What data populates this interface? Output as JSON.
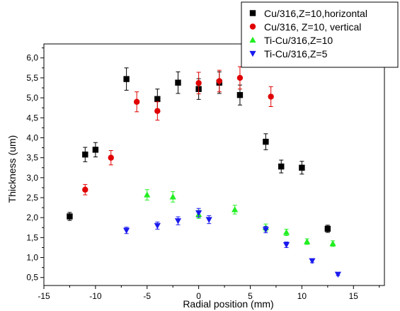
{
  "chart_data": {
    "type": "scatter",
    "title": "",
    "xlabel": "Radial position  (mm)",
    "ylabel": "Thickness (um)",
    "xlim": [
      -15,
      18
    ],
    "ylim": [
      0.3,
      6.35
    ],
    "xticks": [
      -15,
      -10,
      -5,
      0,
      5,
      10,
      15
    ],
    "xtick_labels": [
      "-15",
      "-10",
      "-5",
      "0",
      "5",
      "10",
      "15"
    ],
    "yticks": [
      0.5,
      1.0,
      1.5,
      2.0,
      2.5,
      3.0,
      3.5,
      4.0,
      4.5,
      5.0,
      5.5,
      6.0
    ],
    "ytick_labels": [
      "0,5",
      "1,0",
      "1,5",
      "2,0",
      "2,5",
      "3,0",
      "3,5",
      "4,0",
      "4,5",
      "5,0",
      "5,5",
      "6,0"
    ],
    "grid": false,
    "legend_position": "top-right",
    "series": [
      {
        "name": "Cu/316,Z=10,horizontal",
        "marker": "square",
        "color": "#000000",
        "points": [
          {
            "x": -12.5,
            "y": 2.03,
            "err": 0.1
          },
          {
            "x": -11,
            "y": 3.58,
            "err": 0.18
          },
          {
            "x": -10,
            "y": 3.7,
            "err": 0.18
          },
          {
            "x": -7,
            "y": 5.47,
            "err": 0.28
          },
          {
            "x": -4,
            "y": 4.97,
            "err": 0.25
          },
          {
            "x": -2,
            "y": 5.38,
            "err": 0.27
          },
          {
            "x": 0,
            "y": 5.22,
            "err": 0.26
          },
          {
            "x": 2,
            "y": 5.38,
            "err": 0.27
          },
          {
            "x": 4,
            "y": 5.07,
            "err": 0.25
          },
          {
            "x": 6.5,
            "y": 3.9,
            "err": 0.2
          },
          {
            "x": 8,
            "y": 3.28,
            "err": 0.16
          },
          {
            "x": 10,
            "y": 3.25,
            "err": 0.16
          },
          {
            "x": 12.5,
            "y": 1.72,
            "err": 0.09
          }
        ]
      },
      {
        "name": "Cu/316, Z=10, vertical",
        "marker": "circle",
        "color": "#e00000",
        "points": [
          {
            "x": -11,
            "y": 2.7,
            "err": 0.13
          },
          {
            "x": -8.5,
            "y": 3.5,
            "err": 0.18
          },
          {
            "x": -6,
            "y": 4.9,
            "err": 0.25
          },
          {
            "x": -4,
            "y": 4.67,
            "err": 0.23
          },
          {
            "x": 0,
            "y": 5.37,
            "err": 0.27
          },
          {
            "x": 2,
            "y": 5.42,
            "err": 0.27
          },
          {
            "x": 4,
            "y": 5.5,
            "err": 0.28
          },
          {
            "x": 7,
            "y": 5.03,
            "err": 0.25
          }
        ]
      },
      {
        "name": "Ti-Cu/316,Z=10",
        "marker": "triangle-up",
        "color": "#22ee22",
        "points": [
          {
            "x": -5,
            "y": 2.57,
            "err": 0.13
          },
          {
            "x": -2.5,
            "y": 2.52,
            "err": 0.13
          },
          {
            "x": 0,
            "y": 2.08,
            "err": 0.1
          },
          {
            "x": 3.5,
            "y": 2.2,
            "err": 0.11
          },
          {
            "x": 6.5,
            "y": 1.75,
            "err": 0.09
          },
          {
            "x": 8.5,
            "y": 1.63,
            "err": 0.08
          },
          {
            "x": 10.5,
            "y": 1.4,
            "err": 0.07
          },
          {
            "x": 13,
            "y": 1.35,
            "err": 0.07
          }
        ]
      },
      {
        "name": "Ti-Cu/316,Z=5",
        "marker": "triangle-down",
        "color": "#1a1aee",
        "points": [
          {
            "x": -7,
            "y": 1.68,
            "err": 0.08
          },
          {
            "x": -4,
            "y": 1.8,
            "err": 0.09
          },
          {
            "x": -2,
            "y": 1.92,
            "err": 0.1
          },
          {
            "x": 0,
            "y": 2.12,
            "err": 0.11
          },
          {
            "x": 1,
            "y": 1.95,
            "err": 0.1
          },
          {
            "x": 6.5,
            "y": 1.7,
            "err": 0.08
          },
          {
            "x": 8.5,
            "y": 1.32,
            "err": 0.07
          },
          {
            "x": 11,
            "y": 0.92,
            "err": 0.05
          },
          {
            "x": 13.5,
            "y": 0.58,
            "err": 0.03
          }
        ]
      }
    ]
  }
}
